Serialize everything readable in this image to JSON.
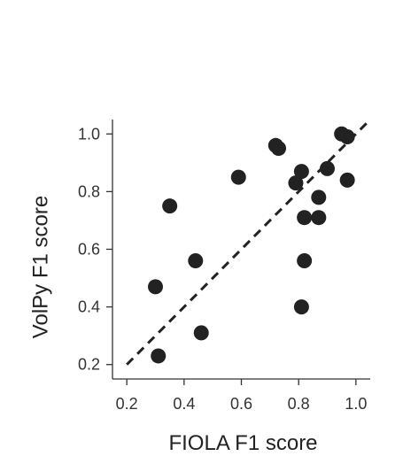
{
  "chart_data": {
    "type": "scatter",
    "xlabel": "FIOLA F1 score",
    "ylabel": "VolPy F1 score",
    "xlim": [
      0.15,
      1.05
    ],
    "ylim": [
      0.15,
      1.05
    ],
    "x_ticks": [
      "0.2",
      "0.4",
      "0.6",
      "0.8",
      "1.0"
    ],
    "y_ticks": [
      "0.2",
      "0.4",
      "0.6",
      "0.8",
      "1.0"
    ],
    "x_tick_values": [
      0.2,
      0.4,
      0.6,
      0.8,
      1.0
    ],
    "y_tick_values": [
      0.2,
      0.4,
      0.6,
      0.8,
      1.0
    ],
    "reference_line": {
      "style": "dashed",
      "from": [
        0.2,
        0.2
      ],
      "to": [
        1.05,
        1.05
      ]
    },
    "grid": false,
    "legend": "none",
    "colors": {
      "points": "#222222",
      "line": "#222222",
      "axes": "#333333"
    },
    "series": [
      {
        "x": [
          0.31,
          0.3,
          0.35,
          0.44,
          0.46,
          0.59,
          0.72,
          0.73,
          0.79,
          0.81,
          0.81,
          0.82,
          0.82,
          0.87,
          0.87,
          0.9,
          0.95,
          0.97,
          0.97
        ],
        "y": [
          0.23,
          0.47,
          0.75,
          0.56,
          0.31,
          0.85,
          0.96,
          0.95,
          0.83,
          0.4,
          0.87,
          0.71,
          0.56,
          0.78,
          0.71,
          0.88,
          1.0,
          0.99,
          0.84
        ]
      }
    ]
  }
}
